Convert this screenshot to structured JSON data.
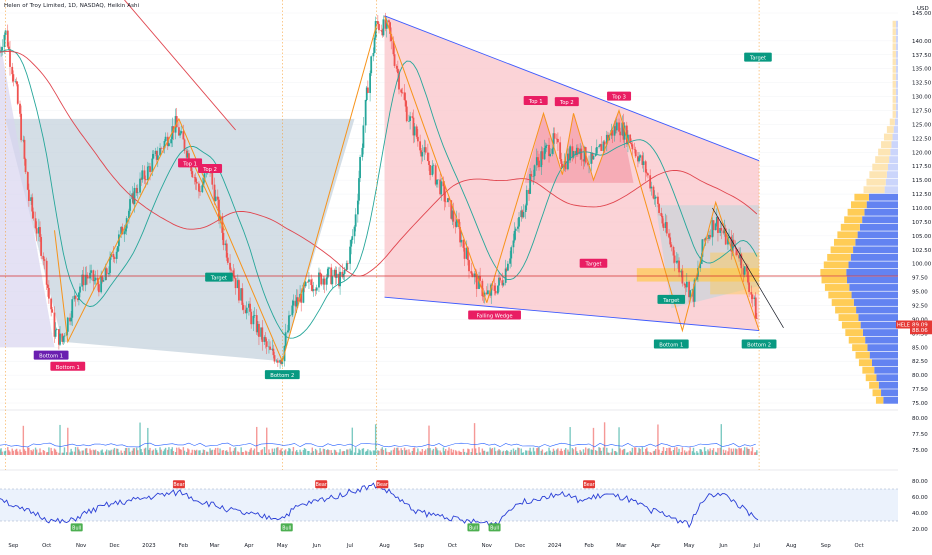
{
  "header": {
    "title": "Helen of Troy Limited, 1D, NASDAQ, Heikin Ashi"
  },
  "colors": {
    "up": "#26a69a",
    "down": "#ef5350",
    "pattern_line": "#f7931a",
    "ema_green": "#26a69a",
    "ma_red": "#e0464f",
    "rsi": "#2a3fd6",
    "wedge_fill": "#f9c4c9",
    "cup_fill": "#c5d3dd",
    "trend_blue": "#3d5afe",
    "vp_blue": "#5b7cf0",
    "vp_orange": "#ffc94d"
  },
  "chart_data": {
    "type": "candlestick",
    "title": "Helen of Troy Limited, 1D, NASDAQ, Heikin Ashi",
    "currency": "USD",
    "price_axis": [
      "145.00",
      "140.00",
      "137.50",
      "135.00",
      "132.50",
      "130.00",
      "127.50",
      "125.00",
      "122.50",
      "120.00",
      "117.50",
      "115.00",
      "112.50",
      "110.00",
      "107.50",
      "105.00",
      "102.50",
      "100.00",
      "97.50",
      "95.00",
      "92.50",
      "90.00",
      "87.50",
      "85.00",
      "82.50",
      "80.00",
      "77.50",
      "75.00"
    ],
    "last_price_tags": [
      {
        "label": "HELE",
        "value": "89.09"
      },
      {
        "value": "88.06"
      }
    ],
    "x_axis": [
      "Sep",
      "Oct",
      "Nov",
      "Dec",
      "2023",
      "Feb",
      "Mar",
      "Apr",
      "May",
      "Jun",
      "Jul",
      "Aug",
      "Sep",
      "Oct",
      "Nov",
      "Dec",
      "2024",
      "Feb",
      "Mar",
      "Apr",
      "May",
      "Jun",
      "Jul",
      "Aug",
      "Sep",
      "Oct"
    ],
    "price_path": [
      [
        "2022-08-20",
        138
      ],
      [
        "2022-08-25",
        142
      ],
      [
        "2022-09-05",
        130
      ],
      [
        "2022-09-15",
        112
      ],
      [
        "2022-09-28",
        102
      ],
      [
        "2022-10-08",
        88
      ],
      [
        "2022-10-15",
        86
      ],
      [
        "2022-10-25",
        93
      ],
      [
        "2022-11-05",
        98
      ],
      [
        "2022-11-20",
        96
      ],
      [
        "2022-12-05",
        104
      ],
      [
        "2022-12-20",
        113
      ],
      [
        "2023-01-10",
        120
      ],
      [
        "2023-01-25",
        125
      ],
      [
        "2023-02-05",
        120
      ],
      [
        "2023-02-15",
        113
      ],
      [
        "2023-02-25",
        117
      ],
      [
        "2023-03-10",
        104
      ],
      [
        "2023-03-25",
        94
      ],
      [
        "2023-04-10",
        88
      ],
      [
        "2023-04-20",
        84
      ],
      [
        "2023-05-01",
        83
      ],
      [
        "2023-05-10",
        92
      ],
      [
        "2023-05-25",
        96
      ],
      [
        "2023-06-10",
        98
      ],
      [
        "2023-06-25",
        97
      ],
      [
        "2023-07-05",
        106
      ],
      [
        "2023-07-15",
        128
      ],
      [
        "2023-07-25",
        143
      ],
      [
        "2023-08-05",
        142
      ],
      [
        "2023-08-20",
        128
      ],
      [
        "2023-09-05",
        120
      ],
      [
        "2023-09-20",
        114
      ],
      [
        "2023-10-05",
        107
      ],
      [
        "2023-10-20",
        98
      ],
      [
        "2023-11-01",
        94
      ],
      [
        "2023-11-15",
        97
      ],
      [
        "2023-12-01",
        108
      ],
      [
        "2023-12-15",
        118
      ],
      [
        "2024-01-01",
        122
      ],
      [
        "2024-01-10",
        118
      ],
      [
        "2024-01-20",
        121
      ],
      [
        "2024-02-05",
        118
      ],
      [
        "2024-02-15",
        122
      ],
      [
        "2024-02-28",
        125
      ],
      [
        "2024-03-10",
        122
      ],
      [
        "2024-03-25",
        116
      ],
      [
        "2024-04-10",
        106
      ],
      [
        "2024-04-25",
        98
      ],
      [
        "2024-05-05",
        94
      ],
      [
        "2024-05-15",
        104
      ],
      [
        "2024-05-25",
        108
      ],
      [
        "2024-06-05",
        104
      ],
      [
        "2024-06-15",
        102
      ],
      [
        "2024-06-25",
        96
      ],
      [
        "2024-07-03",
        89
      ]
    ],
    "volume_axis": [
      "80.00",
      "77.50",
      "75.00"
    ],
    "rsi": {
      "ticks": [
        "80.00",
        "60.00",
        "40.00",
        "20.00"
      ],
      "band": [
        30,
        70
      ],
      "path": [
        [
          "2022-08-20",
          60
        ],
        [
          "2022-09-05",
          45
        ],
        [
          "2022-09-20",
          40
        ],
        [
          "2022-10-05",
          30
        ],
        [
          "2022-10-20",
          28
        ],
        [
          "2022-11-05",
          40
        ],
        [
          "2022-11-25",
          50
        ],
        [
          "2022-12-15",
          55
        ],
        [
          "2023-01-10",
          62
        ],
        [
          "2023-01-30",
          66
        ],
        [
          "2023-02-15",
          55
        ],
        [
          "2023-03-05",
          48
        ],
        [
          "2023-03-25",
          40
        ],
        [
          "2023-04-15",
          35
        ],
        [
          "2023-05-01",
          34
        ],
        [
          "2023-05-15",
          48
        ],
        [
          "2023-06-01",
          55
        ],
        [
          "2023-06-20",
          62
        ],
        [
          "2023-07-10",
          70
        ],
        [
          "2023-07-25",
          75
        ],
        [
          "2023-08-10",
          62
        ],
        [
          "2023-08-25",
          45
        ],
        [
          "2023-09-10",
          38
        ],
        [
          "2023-09-25",
          36
        ],
        [
          "2023-10-10",
          30
        ],
        [
          "2023-10-25",
          28
        ],
        [
          "2023-11-10",
          27
        ],
        [
          "2023-11-25",
          50
        ],
        [
          "2023-12-15",
          58
        ],
        [
          "2024-01-05",
          65
        ],
        [
          "2024-01-25",
          55
        ],
        [
          "2024-02-15",
          63
        ],
        [
          "2024-03-05",
          58
        ],
        [
          "2024-03-25",
          45
        ],
        [
          "2024-04-15",
          35
        ],
        [
          "2024-05-01",
          26
        ],
        [
          "2024-05-15",
          58
        ],
        [
          "2024-05-28",
          66
        ],
        [
          "2024-06-10",
          55
        ],
        [
          "2024-06-25",
          38
        ],
        [
          "2024-07-03",
          28
        ]
      ],
      "signals": [
        {
          "date": "2022-10-28",
          "label": "Bull",
          "kind": "bull"
        },
        {
          "date": "2023-01-28",
          "label": "Bear",
          "kind": "bear"
        },
        {
          "date": "2023-05-05",
          "label": "Bull",
          "kind": "bull"
        },
        {
          "date": "2023-06-05",
          "label": "Bear",
          "kind": "bear"
        },
        {
          "date": "2023-07-30",
          "label": "Bear",
          "kind": "bear"
        },
        {
          "date": "2023-10-20",
          "label": "Bull",
          "kind": "bull"
        },
        {
          "date": "2023-11-08",
          "label": "Bull",
          "kind": "bull"
        },
        {
          "date": "2024-02-01",
          "label": "Bear",
          "kind": "bear"
        }
      ]
    },
    "annotations": [
      {
        "text": "Bottom 1",
        "date": "2022-10-05",
        "price": 83.5,
        "kind": "purple"
      },
      {
        "text": "Bottom 1",
        "date": "2022-10-20",
        "price": 81.5,
        "kind": "red"
      },
      {
        "text": "Top 1",
        "date": "2023-02-07",
        "price": 118,
        "kind": "red"
      },
      {
        "text": "Top 2",
        "date": "2023-02-25",
        "price": 117,
        "kind": "red"
      },
      {
        "text": "Target",
        "date": "2023-03-05",
        "price": 97.5,
        "kind": "green"
      },
      {
        "text": "Bottom 2",
        "date": "2023-05-01",
        "price": 80,
        "kind": "green"
      },
      {
        "text": "Falling Wedge",
        "date": "2023-11-08",
        "price": 90.7,
        "kind": "red"
      },
      {
        "text": "Top 1",
        "date": "2023-12-15",
        "price": 129.2,
        "kind": "red"
      },
      {
        "text": "Top 2",
        "date": "2024-01-12",
        "price": 129,
        "kind": "red"
      },
      {
        "text": "Top 3",
        "date": "2024-02-28",
        "price": 130,
        "kind": "red"
      },
      {
        "text": "Target",
        "date": "2024-02-05",
        "price": 100,
        "kind": "red"
      },
      {
        "text": "Target",
        "date": "2024-04-15",
        "price": 93.5,
        "kind": "green"
      },
      {
        "text": "Bottom 1",
        "date": "2024-04-15",
        "price": 85.5,
        "kind": "green"
      },
      {
        "text": "Bottom 2",
        "date": "2024-07-03",
        "price": 85.5,
        "kind": "green"
      },
      {
        "text": "Target",
        "date": "2024-07-02",
        "price": 137,
        "kind": "green"
      }
    ]
  }
}
